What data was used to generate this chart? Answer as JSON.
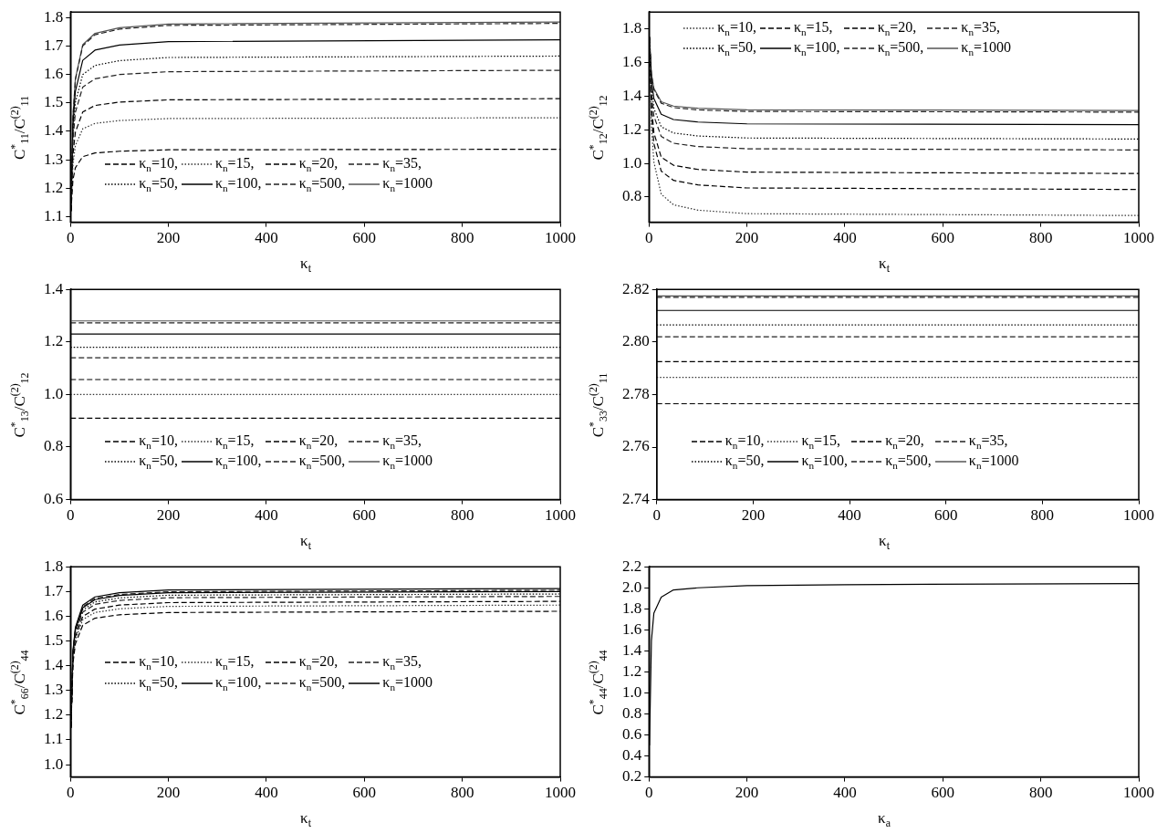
{
  "chart_data": [
    {
      "type": "line",
      "xlabel": "κ$_{t}$",
      "ylabel": "C$^{*}$$_{11}$/C$^{(2)}$$_{11}$",
      "xlim": [
        0,
        1000
      ],
      "xticks": [
        0,
        200,
        400,
        600,
        800,
        1000
      ],
      "ylim": [
        1.08,
        1.82
      ],
      "yticks": [
        1.1,
        1.2,
        1.3,
        1.4,
        1.5,
        1.6,
        1.7,
        1.8
      ],
      "legend": "bottom left",
      "x": [
        1,
        5,
        10,
        25,
        50,
        100,
        200,
        1000
      ],
      "series": [
        {
          "name": "κ$_{n}$=10,",
          "color": "#000000",
          "line_style": "dashed",
          "values": [
            1.12,
            1.229,
            1.272,
            1.311,
            1.324,
            1.33,
            1.335,
            1.337
          ]
        },
        {
          "name": "κ$_{n}$=15,",
          "color": "#333333",
          "line_style": "dotted",
          "values": [
            1.12,
            1.284,
            1.35,
            1.409,
            1.428,
            1.438,
            1.445,
            1.448
          ]
        },
        {
          "name": "κ$_{n}$=20,",
          "color": "#000000",
          "line_style": "dashed",
          "values": [
            1.12,
            1.318,
            1.397,
            1.468,
            1.491,
            1.503,
            1.511,
            1.515
          ]
        },
        {
          "name": "κ$_{n}$=35,",
          "color": "#222222",
          "line_style": "dashed",
          "values": [
            1.12,
            1.368,
            1.467,
            1.556,
            1.585,
            1.6,
            1.61,
            1.615
          ]
        },
        {
          "name": "κ$_{n}$=50,",
          "color": "#000000",
          "line_style": "dotted",
          "values": [
            1.12,
            1.393,
            1.502,
            1.6,
            1.632,
            1.649,
            1.66,
            1.665
          ]
        },
        {
          "name": "κ$_{n}$=100,",
          "color": "#000000",
          "line_style": "solid",
          "values": [
            1.12,
            1.421,
            1.541,
            1.65,
            1.686,
            1.704,
            1.716,
            1.722
          ]
        },
        {
          "name": "κ$_{n}$=500,",
          "color": "#222222",
          "line_style": "dashed",
          "values": [
            1.12,
            1.45,
            1.582,
            1.701,
            1.74,
            1.76,
            1.773,
            1.78
          ]
        },
        {
          "name": "κ$_{n}$=1000",
          "color": "#555555",
          "line_style": "solid",
          "values": [
            1.12,
            1.453,
            1.586,
            1.705,
            1.745,
            1.765,
            1.778,
            1.785
          ]
        }
      ]
    },
    {
      "type": "line",
      "xlabel": "κ$_{t}$",
      "ylabel": "C$^{*}$$_{12}$/C$^{(2)}$$_{12}$",
      "xlim": [
        0,
        1000
      ],
      "xticks": [
        0,
        200,
        400,
        600,
        800,
        1000
      ],
      "ylim": [
        0.65,
        1.9
      ],
      "yticks": [
        {
          "value": 0.8,
          "label": "0.8"
        },
        {
          "value": 1,
          "label": "1.0"
        },
        1.2,
        1.4,
        1.6,
        1.8
      ],
      "legend": "top left",
      "x": [
        1,
        5,
        10,
        25,
        50,
        100,
        200,
        1000
      ],
      "series": [
        {
          "name": "κ$_{n}$=10,",
          "color": "#333333",
          "line_style": "dotted",
          "values": [
            1.75,
            1.22,
            1.008,
            0.817,
            0.754,
            0.722,
            0.701,
            0.69
          ]
        },
        {
          "name": "κ$_{n}$=15,",
          "color": "#000000",
          "line_style": "dashed",
          "values": [
            1.75,
            1.298,
            1.117,
            0.954,
            0.899,
            0.872,
            0.854,
            0.845
          ]
        },
        {
          "name": "κ$_{n}$=20,",
          "color": "#000000",
          "line_style": "dashed",
          "values": [
            1.75,
            1.345,
            1.183,
            1.037,
            0.989,
            0.964,
            0.948,
            0.94
          ]
        },
        {
          "name": "κ$_{n}$=35,",
          "color": "#222222",
          "line_style": "dashed",
          "values": [
            1.75,
            1.415,
            1.281,
            1.16,
            1.12,
            1.1,
            1.087,
            1.08
          ]
        },
        {
          "name": "κ$_{n}$=50,",
          "color": "#000000",
          "line_style": "dotted",
          "values": [
            1.75,
            1.448,
            1.327,
            1.218,
            1.181,
            1.163,
            1.151,
            1.145
          ]
        },
        {
          "name": "κ$_{n}$=100,",
          "color": "#000000",
          "line_style": "solid",
          "values": [
            1.75,
            1.49,
            1.386,
            1.292,
            1.261,
            1.246,
            1.235,
            1.23
          ]
        },
        {
          "name": "κ$_{n}$=500,",
          "color": "#222222",
          "line_style": "dashed",
          "values": [
            1.75,
            1.528,
            1.439,
            1.358,
            1.332,
            1.318,
            1.309,
            1.305
          ]
        },
        {
          "name": "κ$_{n}$=1000",
          "color": "#555555",
          "line_style": "solid",
          "values": [
            1.75,
            1.533,
            1.446,
            1.367,
            1.341,
            1.328,
            1.319,
            1.315
          ]
        }
      ]
    },
    {
      "type": "line",
      "xlabel": "κ$_{t}$",
      "ylabel": "C$^{*}$$_{13}$/C$^{(2)}$$_{12}$",
      "xlim": [
        0,
        1000
      ],
      "xticks": [
        0,
        200,
        400,
        600,
        800,
        1000
      ],
      "ylim": [
        0.6,
        1.4
      ],
      "yticks": [
        0.6,
        0.8,
        {
          "value": 1,
          "label": "1.0"
        },
        1.2,
        1.4
      ],
      "legend": "bottom left",
      "x": [
        0,
        1000
      ],
      "series": [
        {
          "name": "κ$_{n}$=10,",
          "color": "#000000",
          "line_style": "dashed",
          "values": [
            0.91,
            0.91
          ]
        },
        {
          "name": "κ$_{n}$=15,",
          "color": "#333333",
          "line_style": "dotted",
          "values": [
            1.0,
            1.0
          ]
        },
        {
          "name": "κ$_{n}$=20,",
          "color": "#000000",
          "line_style": "dashed",
          "values": [
            1.057,
            1.057
          ]
        },
        {
          "name": "κ$_{n}$=35,",
          "color": "#222222",
          "line_style": "dashed",
          "values": [
            1.14,
            1.14
          ]
        },
        {
          "name": "κ$_{n}$=50,",
          "color": "#000000",
          "line_style": "dotted",
          "values": [
            1.18,
            1.18
          ]
        },
        {
          "name": "κ$_{n}$=100,",
          "color": "#000000",
          "line_style": "solid",
          "values": [
            1.23,
            1.23
          ]
        },
        {
          "name": "κ$_{n}$=500,",
          "color": "#222222",
          "line_style": "dashed",
          "values": [
            1.273,
            1.273
          ]
        },
        {
          "name": "κ$_{n}$=1000",
          "color": "#555555",
          "line_style": "solid",
          "values": [
            1.28,
            1.28
          ]
        }
      ]
    },
    {
      "type": "line",
      "xlabel": "κ$_{t}$",
      "ylabel": "C$^{*}$$_{33}$/C$^{(2)}$$_{11}$",
      "xlim": [
        0,
        1000
      ],
      "xticks": [
        0,
        200,
        400,
        600,
        800,
        1000
      ],
      "ylim": [
        2.74,
        2.82
      ],
      "yticks": [
        2.74,
        2.76,
        2.78,
        {
          "value": 2.8,
          "label": "2.80"
        },
        2.82
      ],
      "legend": "bottom left",
      "x": [
        0,
        1000
      ],
      "series": [
        {
          "name": "κ$_{n}$=10,",
          "color": "#000000",
          "line_style": "dashed",
          "values": [
            2.7765,
            2.7765
          ]
        },
        {
          "name": "κ$_{n}$=15,",
          "color": "#333333",
          "line_style": "dotted",
          "values": [
            2.7865,
            2.7865
          ]
        },
        {
          "name": "κ$_{n}$=20,",
          "color": "#000000",
          "line_style": "dashed",
          "values": [
            2.7925,
            2.7925
          ]
        },
        {
          "name": "κ$_{n}$=35,",
          "color": "#222222",
          "line_style": "dashed",
          "values": [
            2.802,
            2.802
          ]
        },
        {
          "name": "κ$_{n}$=50,",
          "color": "#000000",
          "line_style": "dotted",
          "values": [
            2.8065,
            2.8065
          ]
        },
        {
          "name": "κ$_{n}$=100,",
          "color": "#000000",
          "line_style": "solid",
          "values": [
            2.812,
            2.812
          ]
        },
        {
          "name": "κ$_{n}$=500,",
          "color": "#222222",
          "line_style": "dashed",
          "values": [
            2.817,
            2.817
          ]
        },
        {
          "name": "κ$_{n}$=1000",
          "color": "#555555",
          "line_style": "solid",
          "values": [
            2.8175,
            2.8175
          ]
        }
      ]
    },
    {
      "type": "line",
      "xlabel": "κ$_{t}$",
      "ylabel": "C$^{*}$$_{66}$/C$^{(2)}$$_{44}$",
      "xlim": [
        0,
        1000
      ],
      "xticks": [
        0,
        200,
        400,
        600,
        800,
        1000
      ],
      "ylim": [
        0.95,
        1.8
      ],
      "yticks": [
        {
          "value": 1,
          "label": "1.0"
        },
        1.1,
        1.2,
        1.3,
        1.4,
        1.5,
        1.6,
        1.7,
        1.8
      ],
      "legend": "left",
      "x": [
        1,
        5,
        10,
        25,
        50,
        100,
        200,
        1000
      ],
      "series": [
        {
          "name": "κ$_{n}$=10,",
          "color": "#000000",
          "line_style": "dashed",
          "values": [
            1.15,
            1.409,
            1.488,
            1.564,
            1.592,
            1.606,
            1.615,
            1.62
          ]
        },
        {
          "name": "κ$_{n}$=15,",
          "color": "#333333",
          "line_style": "dotted",
          "values": [
            1.15,
            1.422,
            1.506,
            1.586,
            1.615,
            1.63,
            1.64,
            1.645
          ]
        },
        {
          "name": "κ$_{n}$=20,",
          "color": "#000000",
          "line_style": "dashed",
          "values": [
            1.15,
            1.431,
            1.517,
            1.599,
            1.629,
            1.645,
            1.655,
            1.66
          ]
        },
        {
          "name": "κ$_{n}$=35,",
          "color": "#222222",
          "line_style": "dashed",
          "values": [
            1.15,
            1.442,
            1.532,
            1.616,
            1.648,
            1.664,
            1.675,
            1.68
          ]
        },
        {
          "name": "κ$_{n}$=50,",
          "color": "#000000",
          "line_style": "dotted",
          "values": [
            1.15,
            1.447,
            1.539,
            1.625,
            1.658,
            1.674,
            1.685,
            1.69
          ]
        },
        {
          "name": "κ$_{n}$=100,",
          "color": "#000000",
          "line_style": "solid",
          "values": [
            1.15,
            1.453,
            1.546,
            1.634,
            1.667,
            1.684,
            1.695,
            1.7
          ]
        },
        {
          "name": "κ$_{n}$=500,",
          "color": "#222222",
          "line_style": "dashed",
          "values": [
            1.15,
            1.455,
            1.55,
            1.638,
            1.672,
            1.688,
            1.699,
            1.705
          ]
        },
        {
          "name": "κ$_{n}$=1000",
          "color": "#000000",
          "line_style": "solid",
          "values": [
            1.15,
            1.459,
            1.555,
            1.645,
            1.678,
            1.695,
            1.706,
            1.712
          ]
        }
      ]
    },
    {
      "type": "line",
      "xlabel": "κ$_{a}$",
      "ylabel": "C$^{*}$$_{44}$/C$^{(2)}$$_{44}$",
      "xlim": [
        0,
        1000
      ],
      "xticks": [
        0,
        200,
        400,
        600,
        800,
        1000
      ],
      "ylim": [
        0.2,
        2.2
      ],
      "yticks": [
        0.2,
        0.4,
        0.6,
        0.8,
        {
          "value": 1,
          "label": "1.0"
        },
        1.2,
        1.4,
        1.6,
        1.8,
        {
          "value": 2,
          "label": "2.0"
        },
        2.2
      ],
      "x": [
        1,
        5,
        10,
        25,
        50,
        100,
        200,
        400,
        1000
      ],
      "series": [
        {
          "color": "#000000",
          "line_style": "solid",
          "values": [
            0.5,
            1.5,
            1.76,
            1.91,
            1.98,
            2.0,
            2.02,
            2.03,
            2.04
          ]
        }
      ]
    }
  ]
}
